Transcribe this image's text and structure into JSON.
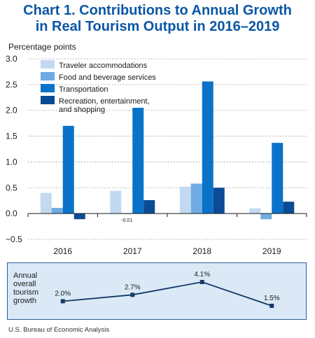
{
  "title_line1": "Chart 1. Contributions to Annual Growth",
  "title_line2": "in Real Tourism Output in 2016–2019",
  "source": "U.S. Bureau of Economic Analysis",
  "colors": {
    "traveler": "#c2d9f1",
    "food": "#6fabe3",
    "transport": "#0a72c9",
    "recreation": "#0b4a94",
    "growth_line": "#143a66"
  },
  "chart_data": [
    {
      "type": "bar",
      "ylabel": "Percentage points",
      "ylim": [
        -0.5,
        3.0
      ],
      "yticks": [
        -0.5,
        0.0,
        0.5,
        1.0,
        1.5,
        2.0,
        2.5,
        3.0
      ],
      "ytick_labels": [
        "−0.5",
        "0.0",
        "0.5",
        "1.0",
        "1.5",
        "2.0",
        "2.5",
        "3.0"
      ],
      "categories": [
        "2016",
        "2017",
        "2018",
        "2019"
      ],
      "legend_position": "top-left",
      "series": [
        {
          "name": "Traveler accommodations",
          "color_key": "traveler",
          "values": [
            0.4,
            0.44,
            0.52,
            0.1
          ]
        },
        {
          "name": "Food and beverage services",
          "color_key": "food",
          "values": [
            0.11,
            -0.01,
            0.58,
            -0.11
          ]
        },
        {
          "name": "Transportation",
          "color_key": "transport",
          "values": [
            1.7,
            2.05,
            2.56,
            1.37
          ]
        },
        {
          "name": "Recreation, entertainment, and shopping",
          "name_lines": [
            "Recreation, entertainment,",
            "and shopping"
          ],
          "color_key": "recreation",
          "values": [
            -0.11,
            0.26,
            0.5,
            0.23
          ]
        }
      ],
      "annotations": [
        {
          "category": "2017",
          "series": 1,
          "text": "-0.01"
        }
      ]
    },
    {
      "type": "line",
      "label_lines": [
        "Annual",
        "overall",
        "tourism",
        "growth"
      ],
      "categories": [
        "2016",
        "2017",
        "2018",
        "2019"
      ],
      "values": [
        2.0,
        2.7,
        4.1,
        1.5
      ],
      "value_labels": [
        "2.0%",
        "2.7%",
        "4.1%",
        "1.5%"
      ]
    }
  ]
}
